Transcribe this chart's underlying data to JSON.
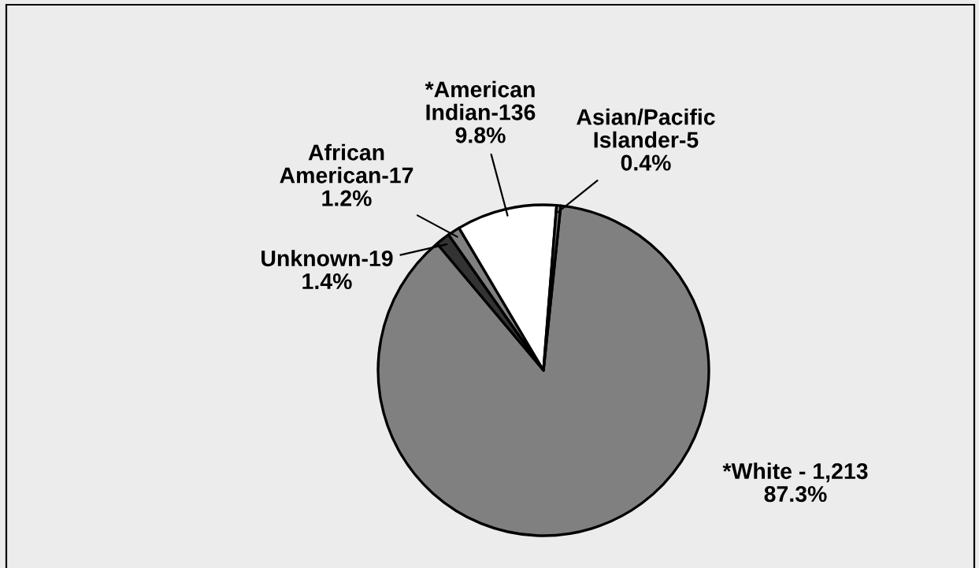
{
  "chart_data": {
    "type": "pie",
    "categories": [
      "*White - 1,213",
      "Unknown-19",
      "African\nAmerican-17",
      "*American\nIndian-136",
      "Asian/Pacific\nIslander-5"
    ],
    "values": [
      87.3,
      1.4,
      1.2,
      9.8,
      0.4
    ],
    "colors": [
      "#808080",
      "#333333",
      "#808080",
      "#ffffff",
      "#808080"
    ],
    "value_labels": [
      "87.3%",
      "1.4%",
      "1.2%",
      "9.8%",
      "0.4%"
    ]
  }
}
